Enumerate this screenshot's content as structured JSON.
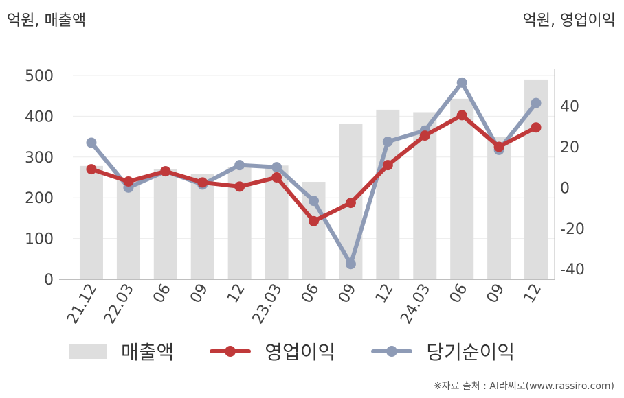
{
  "units": {
    "left": "억원, 매출액",
    "right": "억원, 영업이익"
  },
  "legend": {
    "bar": "매출액",
    "line1": "영업이익",
    "line2": "당기순이익"
  },
  "source": "※자료 출처 : AI라씨로(www.rassiro.com)",
  "colors": {
    "bar": "#dedede",
    "operating": "#c0393a",
    "net": "#8e9bb6"
  },
  "chart_data": {
    "type": "bar+line",
    "categories": [
      "21.12",
      "22.03",
      "06",
      "09",
      "12",
      "23.03",
      "06",
      "09",
      "12",
      "24.03",
      "06",
      "09",
      "12"
    ],
    "left_axis": {
      "ylim": [
        0,
        500
      ],
      "ticks": [
        0,
        100,
        200,
        300,
        400,
        500
      ]
    },
    "right_axis": {
      "ylim": [
        -45,
        55
      ],
      "ticks": [
        -40,
        -20,
        0,
        20,
        40
      ]
    },
    "grid": true,
    "series": [
      {
        "name": "매출액",
        "type": "bar",
        "axis": "left",
        "values": [
          278,
          243,
          270,
          258,
          275,
          279,
          239,
          381,
          416,
          410,
          443,
          350,
          490
        ]
      },
      {
        "name": "영업이익",
        "type": "line",
        "axis": "right",
        "values": [
          9,
          3,
          8,
          2.5,
          0.5,
          5,
          -16.5,
          -7.5,
          11,
          25.5,
          35.5,
          20,
          29.5
        ]
      },
      {
        "name": "당기순이익",
        "type": "line",
        "axis": "right",
        "values": [
          22,
          0,
          8,
          1.5,
          11,
          10,
          -6.5,
          -37.5,
          22.5,
          28,
          51.5,
          18.5,
          41.5
        ]
      }
    ]
  }
}
